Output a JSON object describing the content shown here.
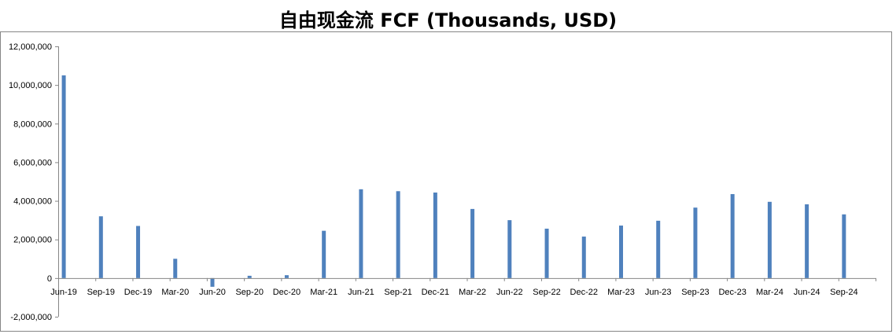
{
  "chart_data": {
    "type": "bar",
    "title": "自由现金流 FCF (Thousands, USD)",
    "xlabel": "",
    "ylabel": "",
    "ylim": [
      -2000000,
      12000000
    ],
    "y_ticks": [
      -2000000,
      0,
      2000000,
      4000000,
      6000000,
      8000000,
      10000000,
      12000000
    ],
    "y_tick_labels": [
      "-2,000,000",
      "0",
      "2,000,000",
      "4,000,000",
      "6,000,000",
      "8,000,000",
      "10,000,000",
      "12,000,000"
    ],
    "categories": [
      "Jun-19",
      "Sep-19",
      "Dec-19",
      "Mar-20",
      "Jun-20",
      "Sep-20",
      "Dec-20",
      "Mar-21",
      "Jun-21",
      "Sep-21",
      "Dec-21",
      "Mar-22",
      "Jun-22",
      "Sep-22",
      "Dec-22",
      "Mar-23",
      "Jun-23",
      "Sep-23",
      "Dec-23",
      "Mar-24",
      "Jun-24",
      "Sep-24"
    ],
    "values": [
      10500000,
      3200000,
      2700000,
      1000000,
      -450000,
      120000,
      150000,
      2450000,
      4600000,
      4500000,
      4430000,
      3580000,
      3000000,
      2560000,
      2150000,
      2720000,
      2970000,
      3650000,
      4350000,
      3950000,
      3820000,
      3300000
    ],
    "grid": false,
    "legend": "none",
    "bar_color": "#4F81BD",
    "axis_color": "#868686"
  }
}
